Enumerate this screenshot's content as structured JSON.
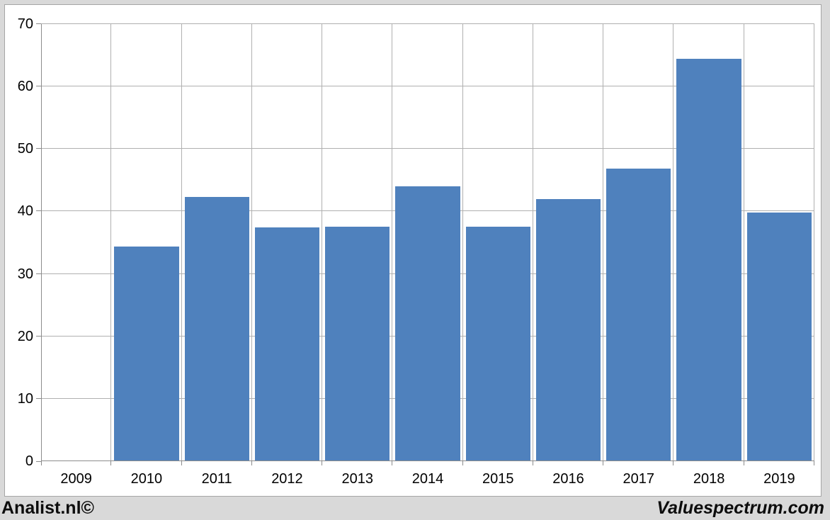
{
  "branding": {
    "left": "Analist.nl©",
    "right": "Valuespectrum.com"
  },
  "colors": {
    "bar": "#4f81bd",
    "background": "#d9d9d9",
    "plot_background": "#ffffff",
    "gridline": "#b0b0b0",
    "axis": "#8c8c8c",
    "frame_border": "#a6a6a6",
    "text": "#000000"
  },
  "chart_data": {
    "type": "bar",
    "title": "",
    "xlabel": "",
    "ylabel": "",
    "categories": [
      "2009",
      "2010",
      "2011",
      "2012",
      "2013",
      "2014",
      "2015",
      "2016",
      "2017",
      "2018",
      "2019"
    ],
    "values": [
      0,
      34.4,
      42.3,
      37.4,
      37.5,
      44.0,
      37.6,
      42.0,
      46.8,
      64.4,
      39.8
    ],
    "ylim": [
      0,
      70
    ],
    "ytick_step": 10,
    "ytick_labels": [
      "0",
      "10",
      "20",
      "30",
      "40",
      "50",
      "60",
      "70"
    ],
    "grid": true,
    "legend": "none",
    "series_name": ""
  }
}
